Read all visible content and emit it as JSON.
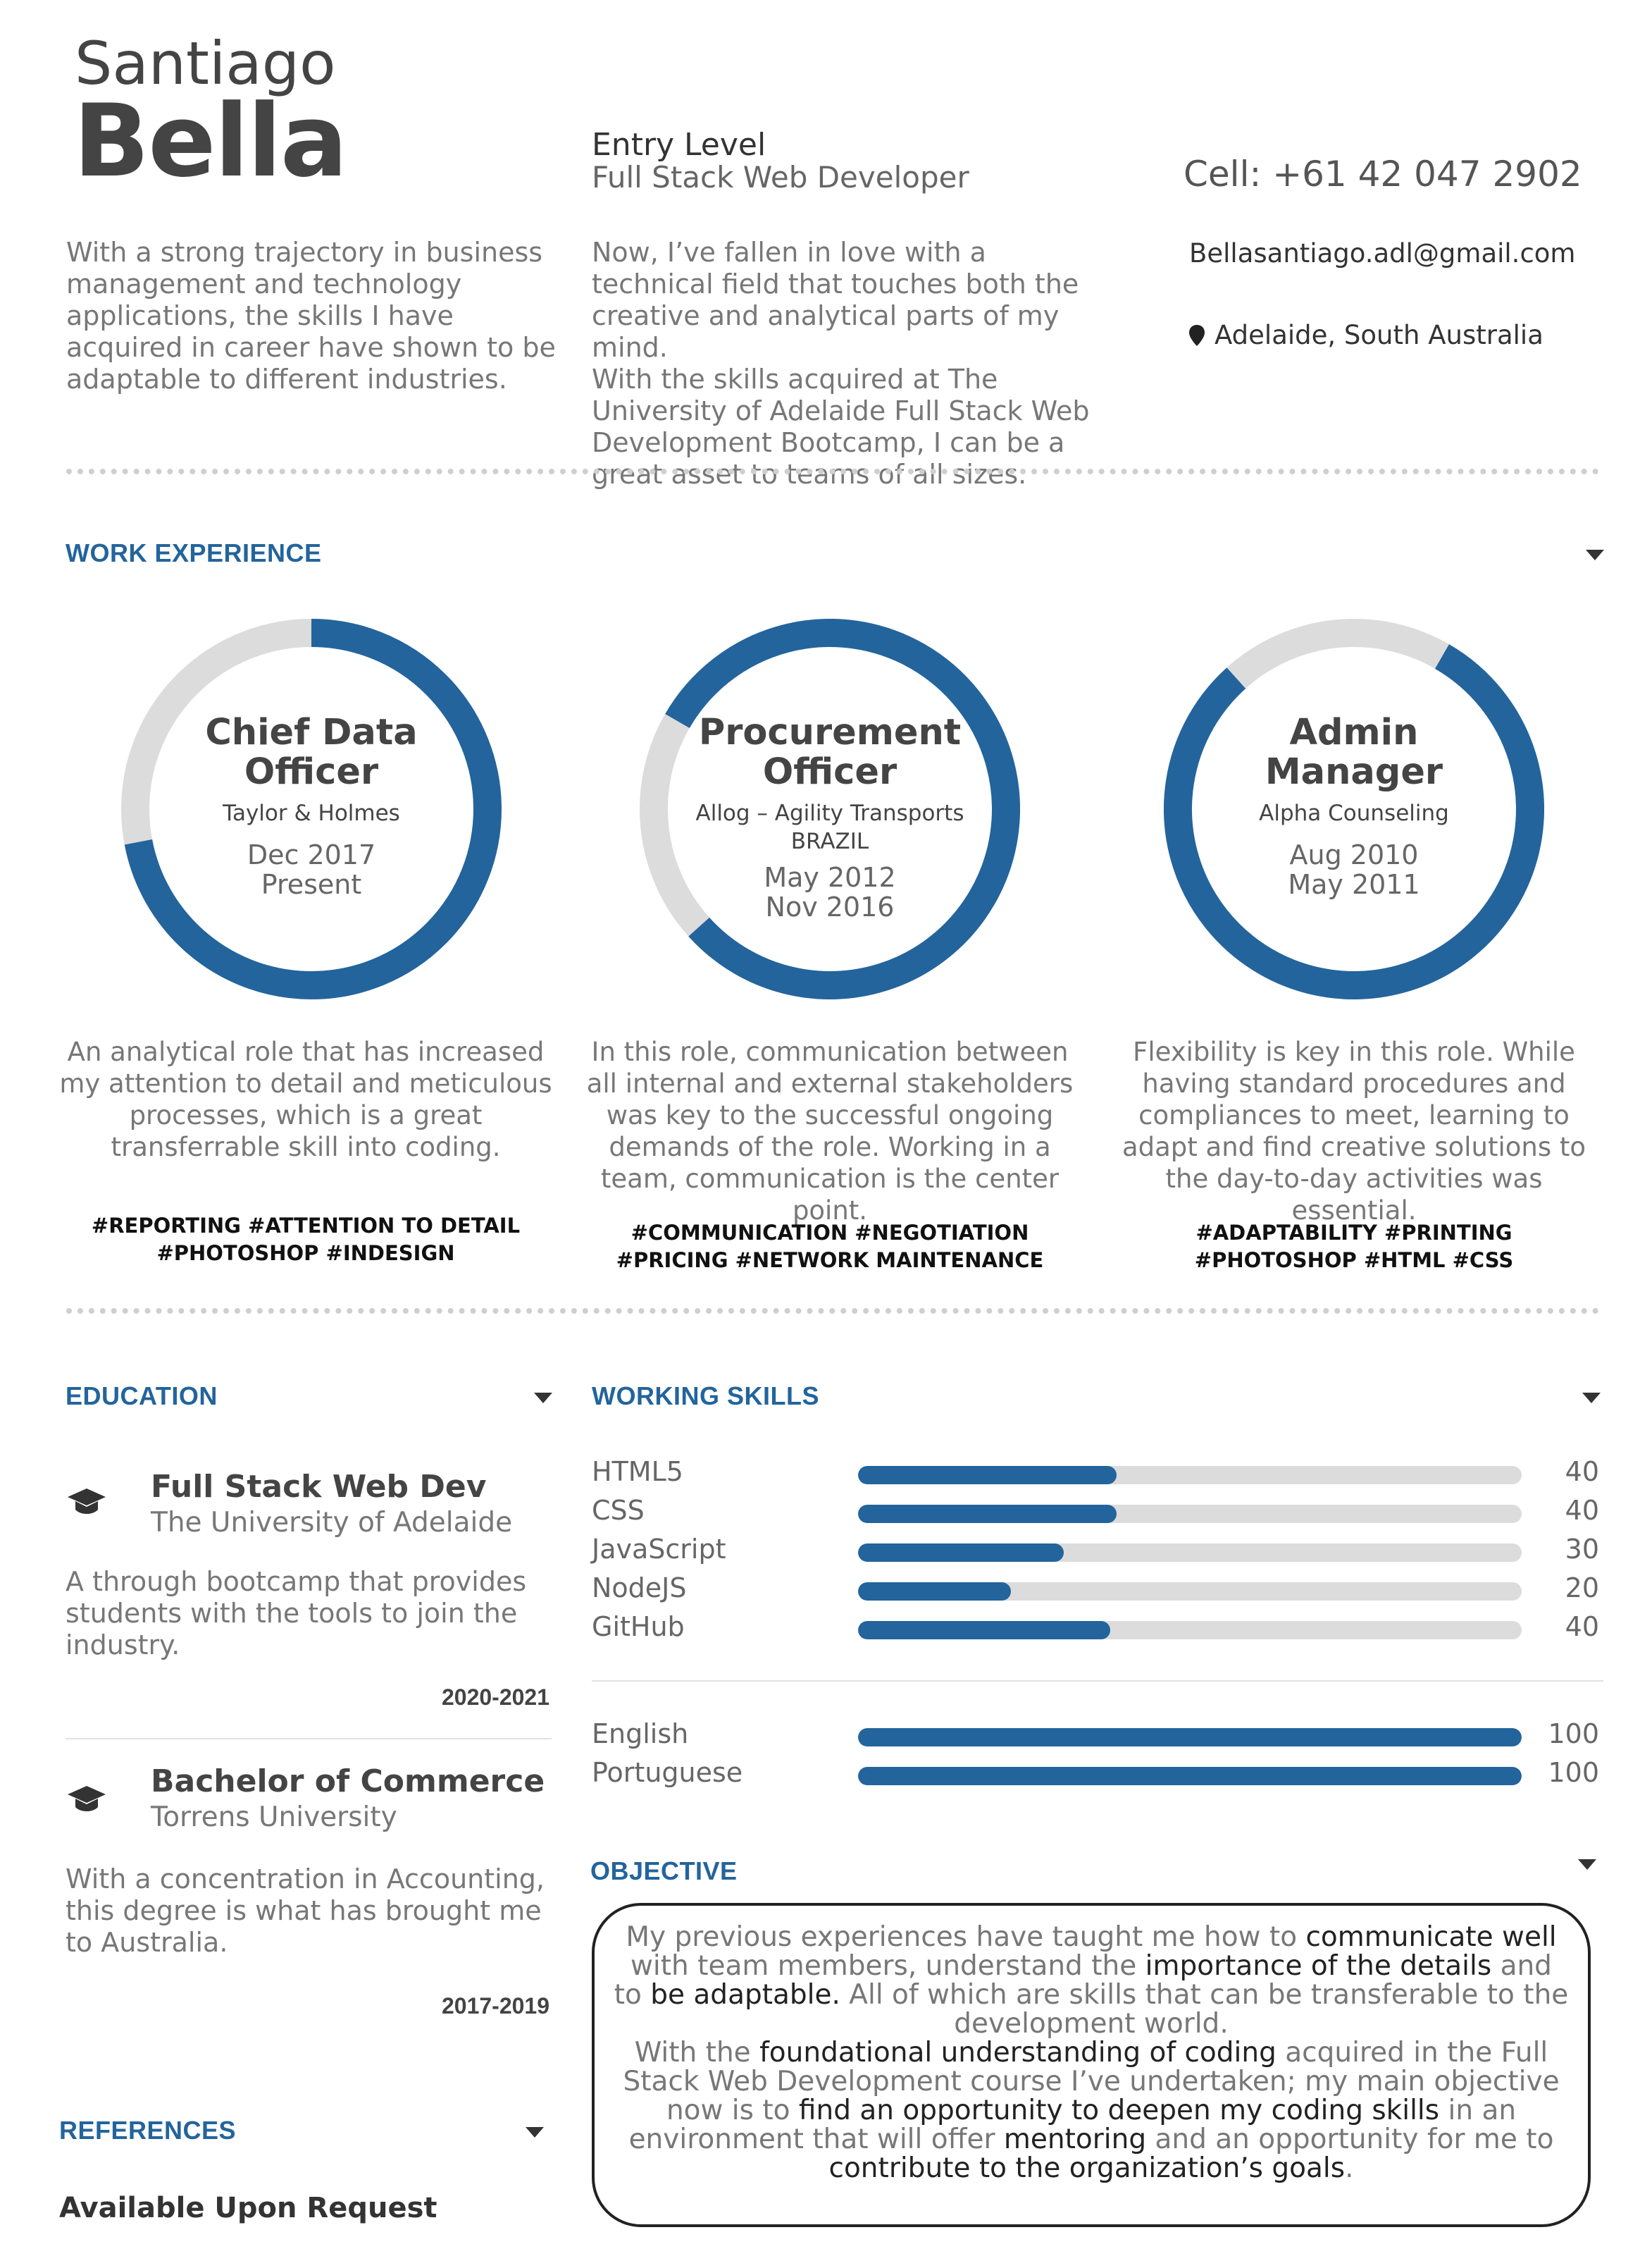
{
  "header": {
    "first_name": "Santiago",
    "last_name": "Bella",
    "role_line1": "Entry Level",
    "role_line2": "Full Stack Web Developer",
    "cell": "Cell: +61 42 047 2902",
    "email": "Bellasantiago.adl@gmail.com",
    "location": "Adelaide, South Australia",
    "intro_left": "With a strong trajectory in business management and technology applications, the skills I have acquired in career have shown to be adaptable to different industries.",
    "intro_middle_1": "Now, I’ve fallen in love with a technical field that touches both the creative and analytical parts of my mind.",
    "intro_middle_2": "With the skills acquired at The University of Adelaide Full Stack Web Development Bootcamp, I can be a great asset to teams of all sizes."
  },
  "work": {
    "title": "WORK EXPERIENCE",
    "jobs": [
      {
        "title_line1": "Chief Data",
        "title_line2": "Officer",
        "company_line1": "Taylor & Holmes",
        "company_line2": "",
        "date_start": "Dec 2017",
        "date_end": "Present",
        "ring_fraction": 0.72,
        "description": "An analytical role that has increased my attention to detail and meticulous processes, which is a great transferrable skill into coding.",
        "tags_line1": "#REPORTING   #ATTENTION TO DETAIL",
        "tags_line2": "#PHOTOSHOP  #INDESIGN"
      },
      {
        "title_line1": "Procurement",
        "title_line2": "Officer",
        "company_line1": "Allog – Agility Transports",
        "company_line2": "BRAZIL",
        "date_start": "May 2012",
        "date_end": "Nov 2016",
        "ring_fraction": 0.8,
        "description": "In this role, communication between all internal and external stakeholders was key to the successful ongoing demands of the role. Working in a team, communication is the center point.",
        "tags_line1": "#COMMUNICATION #NEGOTIATION",
        "tags_line2": "#PRICING  #NETWORK MAINTENANCE"
      },
      {
        "title_line1": "Admin",
        "title_line2": "Manager",
        "company_line1": "Alpha Counseling",
        "company_line2": "",
        "date_start": "Aug 2010",
        "date_end": "May 2011",
        "ring_fraction": 0.8,
        "description": "Flexibility is key in this role. While having standard procedures and compliances to meet, learning to adapt and find creative solutions to the day-to-day activities was essential.",
        "tags_line1": "#ADAPTABILITY   #PRINTING",
        "tags_line2": "#PHOTOSHOP  #HTML #CSS"
      }
    ]
  },
  "education": {
    "title": "EDUCATION",
    "items": [
      {
        "degree": "Full Stack Web Dev",
        "school": "The University of Adelaide",
        "description": "A through bootcamp that provides students with the tools to join the industry.",
        "years": "2020-2021"
      },
      {
        "degree": "Bachelor of Commerce",
        "school": "Torrens University",
        "description": "With a concentration in Accounting, this degree is what has brought me to Australia.",
        "years": "2017-2019"
      }
    ]
  },
  "skills": {
    "title": "WORKING SKILLS",
    "technical": [
      {
        "name": "HTML5",
        "value": 40
      },
      {
        "name": "CSS",
        "value": 40
      },
      {
        "name": "JavaScript",
        "value": 30
      },
      {
        "name": "NodeJS",
        "value": 20
      },
      {
        "name": "GitHub",
        "value": 40
      }
    ],
    "languages": [
      {
        "name": "English",
        "value": 100
      },
      {
        "name": "Portuguese",
        "value": 100
      }
    ],
    "bar_fill_fractions": {
      "HTML5": 0.39,
      "CSS": 0.39,
      "JavaScript": 0.31,
      "NodeJS": 0.23,
      "GitHub": 0.38,
      "English": 1.0,
      "Portuguese": 1.0
    }
  },
  "objective": {
    "title": "OBJECTIVE",
    "segments": [
      {
        "t": "My previous experiences have taught me how to ",
        "hl": false
      },
      {
        "t": "communicate well",
        "hl": true
      },
      {
        "t": " with team members, understand the ",
        "hl": false
      },
      {
        "t": "importance of the details",
        "hl": true
      },
      {
        "t": " and to ",
        "hl": false
      },
      {
        "t": "be adaptable.",
        "hl": true
      },
      {
        "t": " All of which are skills that can be transferable to the development world.",
        "hl": false
      },
      {
        "t": "\n",
        "hl": false
      },
      {
        "t": "With the ",
        "hl": false
      },
      {
        "t": "foundational understanding of coding",
        "hl": true
      },
      {
        "t": " acquired in the Full Stack Web Development course I’ve undertaken; my main objective now is to ",
        "hl": false
      },
      {
        "t": "find an opportunity to deepen my coding skills",
        "hl": true
      },
      {
        "t": " in an environment that will offer ",
        "hl": false
      },
      {
        "t": "mentoring",
        "hl": true
      },
      {
        "t": " and an opportunity for me to ",
        "hl": false
      },
      {
        "t": "contribute to the organization’s goals",
        "hl": true
      },
      {
        "t": ".",
        "hl": false
      }
    ]
  },
  "references": {
    "title": "REFERENCES",
    "text": "Available Upon Request"
  },
  "colors": {
    "accent": "#23649c",
    "track": "#dcdcdc",
    "text_dark": "#444444",
    "text_muted": "#777777"
  }
}
